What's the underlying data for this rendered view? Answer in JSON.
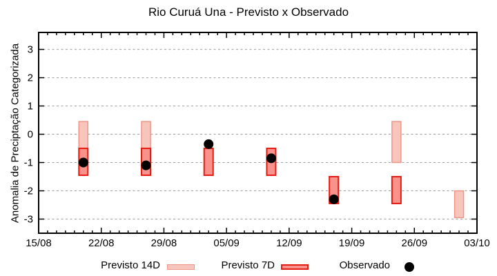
{
  "colors": {
    "previsto14d_fill": "#f8c5bd",
    "previsto14d_border": "#ef9585",
    "previsto7d_fill": "#f9928b",
    "previsto7d_border": "#e51a10",
    "observado": "#000000",
    "grid": "#999999",
    "axis": "#000000",
    "background": "#ffffff"
  },
  "chart_data": {
    "type": "bar",
    "title": "Rio Curuá Una - Previsto x Observado",
    "xlabel": "",
    "ylabel": "Anomalia de Preciptação Categorizada",
    "ylim": [
      -3.5,
      3.6
    ],
    "yticks": [
      3,
      2,
      1,
      0,
      -1,
      -2,
      -3
    ],
    "grid": "horizontal-dashed",
    "legend_position": "bottom",
    "x_tick_labels": [
      "15/08",
      "22/08",
      "29/08",
      "05/09",
      "12/09",
      "19/09",
      "26/09",
      "03/10"
    ],
    "x_tick_days": [
      0,
      7,
      14,
      21,
      28,
      35,
      42,
      49
    ],
    "x_minor_tick_interval_days": 1,
    "series": [
      {
        "name": "Previsto 14D",
        "type": "range-bar",
        "color": "#f8c5bd",
        "border": "#ef9585",
        "data": [
          {
            "date": "20/08",
            "day": 5,
            "low": -0.5,
            "high": 0.45
          },
          {
            "date": "27/08",
            "day": 12,
            "low": -0.5,
            "high": 0.45
          },
          {
            "date": "24/09",
            "day": 40,
            "low": -1.0,
            "high": 0.45
          },
          {
            "date": "01/10",
            "day": 47,
            "low": -2.95,
            "high": -2.0
          }
        ]
      },
      {
        "name": "Previsto 7D",
        "type": "range-bar",
        "color": "#f9928b",
        "border": "#e51a10",
        "data": [
          {
            "date": "20/08",
            "day": 5,
            "low": -1.45,
            "high": -0.5
          },
          {
            "date": "27/08",
            "day": 12,
            "low": -1.45,
            "high": -0.5
          },
          {
            "date": "03/09",
            "day": 19,
            "low": -1.45,
            "high": -0.5
          },
          {
            "date": "10/09",
            "day": 26,
            "low": -1.45,
            "high": -0.5
          },
          {
            "date": "17/09",
            "day": 33,
            "low": -2.45,
            "high": -1.5
          },
          {
            "date": "24/09",
            "day": 40,
            "low": -2.45,
            "high": -1.5
          }
        ]
      },
      {
        "name": "Observado",
        "type": "scatter",
        "color": "#000000",
        "data": [
          {
            "date": "20/08",
            "day": 5,
            "value": -1.0
          },
          {
            "date": "27/08",
            "day": 12,
            "value": -1.1
          },
          {
            "date": "03/09",
            "day": 19,
            "value": -0.35
          },
          {
            "date": "10/09",
            "day": 26,
            "value": -0.85
          },
          {
            "date": "17/09",
            "day": 33,
            "value": -2.3
          }
        ]
      }
    ]
  }
}
